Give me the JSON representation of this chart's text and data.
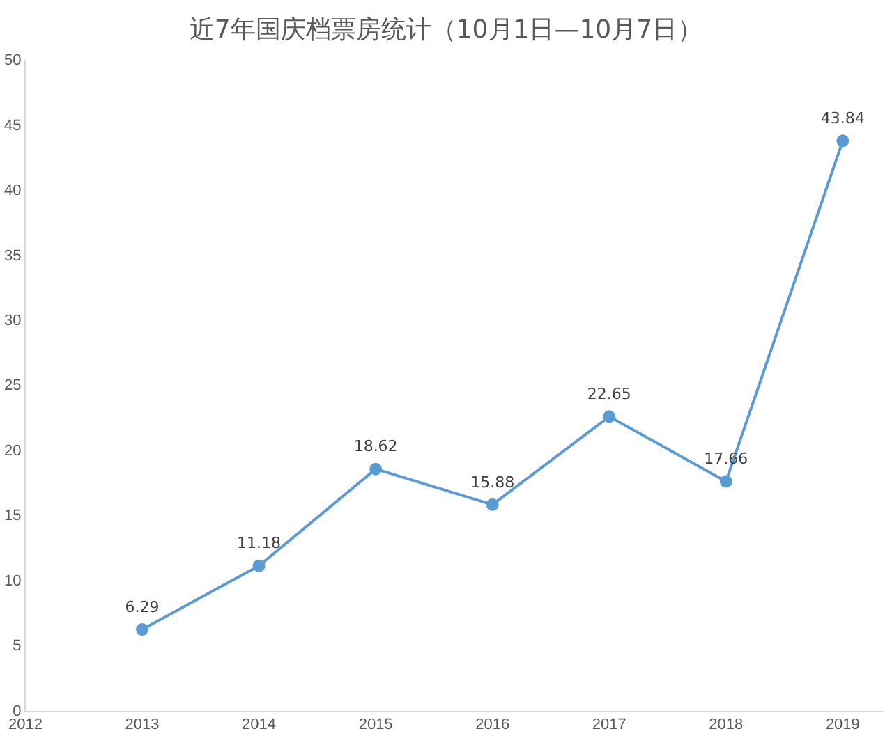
{
  "chart_data": {
    "type": "line",
    "title": "近7年国庆档票房统计（10月1日—10月7日）",
    "x": [
      2013,
      2014,
      2015,
      2016,
      2017,
      2018,
      2019
    ],
    "series": [
      {
        "color": "#5b9bd5",
        "values": [
          6.29,
          11.18,
          18.62,
          15.88,
          22.65,
          17.66,
          43.84
        ]
      }
    ],
    "xlim": [
      2012,
      2019.35
    ],
    "xticks": [
      2012,
      2013,
      2014,
      2015,
      2016,
      2017,
      2018,
      2019
    ],
    "ylim": [
      0,
      50
    ],
    "yticks": [
      0,
      5,
      10,
      15,
      20,
      25,
      30,
      35,
      40,
      45,
      50
    ],
    "grid": false,
    "legend": false,
    "marker": "circle",
    "line_style": "solid",
    "data_labels": true
  }
}
